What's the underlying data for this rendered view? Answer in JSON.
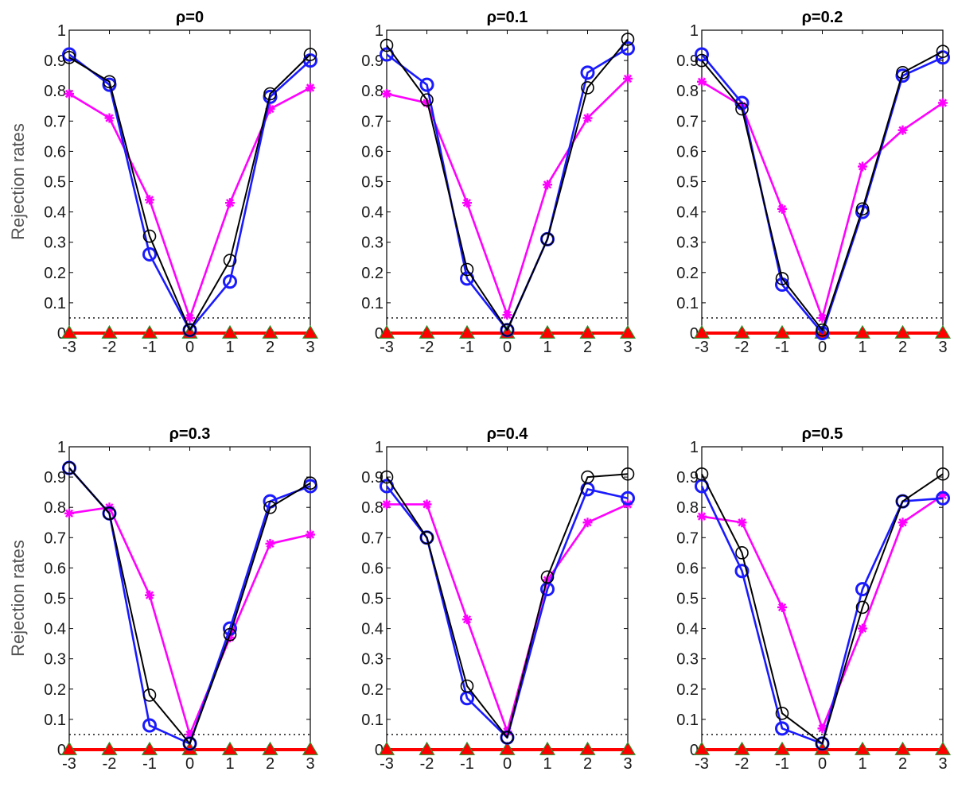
{
  "colors": {
    "blue": "#1a1aff",
    "black": "#000000",
    "magenta": "#ff00ff",
    "red": "#ff0000",
    "green": "#2a8f2a",
    "reference_line": "#000000"
  },
  "chart_data": [
    {
      "type": "line",
      "title": "ρ=0",
      "ylabel": "Rejection rates",
      "x": [
        -3,
        -2,
        -1,
        0,
        1,
        2,
        3
      ],
      "xlim": [
        -3,
        3
      ],
      "ylim": [
        0,
        1
      ],
      "xticks": [
        "-3",
        "-2",
        "-1",
        "0",
        "1",
        "2",
        "3"
      ],
      "yticks": [
        "0",
        "0.1",
        "0.2",
        "0.3",
        "0.4",
        "0.5",
        "0.6",
        "0.7",
        "0.8",
        "0.9",
        "1"
      ],
      "reference_line": 0.05,
      "series": [
        {
          "marker": "triangle",
          "color": "red",
          "values": [
            0,
            0,
            0,
            0,
            0,
            0,
            0
          ]
        },
        {
          "marker": "star",
          "color": "magenta",
          "values": [
            0.79,
            0.71,
            0.44,
            0.05,
            0.43,
            0.74,
            0.81
          ]
        },
        {
          "marker": "circle-bold",
          "color": "blue",
          "values": [
            0.92,
            0.82,
            0.26,
            0.01,
            0.17,
            0.78,
            0.9
          ]
        },
        {
          "marker": "circle",
          "color": "black",
          "values": [
            0.91,
            0.83,
            0.32,
            0.01,
            0.24,
            0.79,
            0.92
          ]
        }
      ]
    },
    {
      "type": "line",
      "title": "ρ=0.1",
      "ylabel": "",
      "x": [
        -3,
        -2,
        -1,
        0,
        1,
        2,
        3
      ],
      "xlim": [
        -3,
        3
      ],
      "ylim": [
        0,
        1
      ],
      "xticks": [
        "-3",
        "-2",
        "-1",
        "0",
        "1",
        "2",
        "3"
      ],
      "yticks": [
        "0",
        "0.1",
        "0.2",
        "0.3",
        "0.4",
        "0.5",
        "0.6",
        "0.7",
        "0.8",
        "0.9",
        "1"
      ],
      "reference_line": 0.05,
      "series": [
        {
          "marker": "triangle",
          "color": "red",
          "values": [
            0,
            0,
            0,
            0,
            0,
            0,
            0
          ]
        },
        {
          "marker": "star",
          "color": "magenta",
          "values": [
            0.79,
            0.76,
            0.43,
            0.06,
            0.49,
            0.71,
            0.84
          ]
        },
        {
          "marker": "circle-bold",
          "color": "blue",
          "values": [
            0.92,
            0.82,
            0.18,
            0.01,
            0.31,
            0.86,
            0.94
          ]
        },
        {
          "marker": "circle",
          "color": "black",
          "values": [
            0.95,
            0.77,
            0.21,
            0.01,
            0.31,
            0.81,
            0.97
          ]
        }
      ]
    },
    {
      "type": "line",
      "title": "ρ=0.2",
      "ylabel": "",
      "x": [
        -3,
        -2,
        -1,
        0,
        1,
        2,
        3
      ],
      "xlim": [
        -3,
        3
      ],
      "ylim": [
        0,
        1
      ],
      "xticks": [
        "-3",
        "-2",
        "-1",
        "0",
        "1",
        "2",
        "3"
      ],
      "yticks": [
        "0",
        "0.1",
        "0.2",
        "0.3",
        "0.4",
        "0.5",
        "0.6",
        "0.7",
        "0.8",
        "0.9",
        "1"
      ],
      "reference_line": 0.05,
      "series": [
        {
          "marker": "triangle",
          "color": "red",
          "values": [
            0,
            0,
            0,
            0,
            0,
            0,
            0
          ]
        },
        {
          "marker": "star",
          "color": "magenta",
          "values": [
            0.83,
            0.75,
            0.41,
            0.05,
            0.55,
            0.67,
            0.76
          ]
        },
        {
          "marker": "circle-bold",
          "color": "blue",
          "values": [
            0.92,
            0.76,
            0.16,
            0.0,
            0.4,
            0.85,
            0.91
          ]
        },
        {
          "marker": "circle",
          "color": "black",
          "values": [
            0.9,
            0.74,
            0.18,
            0.01,
            0.41,
            0.86,
            0.93
          ]
        }
      ]
    },
    {
      "type": "line",
      "title": "ρ=0.3",
      "ylabel": "Rejection rates",
      "x": [
        -3,
        -2,
        -1,
        0,
        1,
        2,
        3
      ],
      "xlim": [
        -3,
        3
      ],
      "ylim": [
        0,
        1
      ],
      "xticks": [
        "-3",
        "-2",
        "-1",
        "0",
        "1",
        "2",
        "3"
      ],
      "yticks": [
        "0",
        "0.1",
        "0.2",
        "0.3",
        "0.4",
        "0.5",
        "0.6",
        "0.7",
        "0.8",
        "0.9",
        "1"
      ],
      "reference_line": 0.05,
      "series": [
        {
          "marker": "triangle",
          "color": "red",
          "values": [
            0,
            0,
            0,
            0,
            0,
            0,
            0
          ]
        },
        {
          "marker": "star",
          "color": "magenta",
          "values": [
            0.78,
            0.8,
            0.51,
            0.05,
            0.37,
            0.68,
            0.71
          ]
        },
        {
          "marker": "circle-bold",
          "color": "blue",
          "values": [
            0.93,
            0.78,
            0.08,
            0.02,
            0.4,
            0.82,
            0.87
          ]
        },
        {
          "marker": "circle",
          "color": "black",
          "values": [
            0.93,
            0.78,
            0.18,
            0.02,
            0.38,
            0.8,
            0.88
          ]
        }
      ]
    },
    {
      "type": "line",
      "title": "ρ=0.4",
      "ylabel": "",
      "x": [
        -3,
        -2,
        -1,
        0,
        1,
        2,
        3
      ],
      "xlim": [
        -3,
        3
      ],
      "ylim": [
        0,
        1
      ],
      "xticks": [
        "-3",
        "-2",
        "-1",
        "0",
        "1",
        "2",
        "3"
      ],
      "yticks": [
        "0",
        "0.1",
        "0.2",
        "0.3",
        "0.4",
        "0.5",
        "0.6",
        "0.7",
        "0.8",
        "0.9",
        "1"
      ],
      "reference_line": 0.05,
      "series": [
        {
          "marker": "triangle",
          "color": "red",
          "values": [
            0,
            0,
            0,
            0,
            0,
            0,
            0
          ]
        },
        {
          "marker": "star",
          "color": "magenta",
          "values": [
            0.81,
            0.81,
            0.43,
            0.06,
            0.56,
            0.75,
            0.81
          ]
        },
        {
          "marker": "circle-bold",
          "color": "blue",
          "values": [
            0.87,
            0.7,
            0.17,
            0.04,
            0.53,
            0.86,
            0.83
          ]
        },
        {
          "marker": "circle",
          "color": "black",
          "values": [
            0.9,
            0.7,
            0.21,
            0.04,
            0.57,
            0.9,
            0.91
          ]
        }
      ]
    },
    {
      "type": "line",
      "title": "ρ=0.5",
      "ylabel": "",
      "x": [
        -3,
        -2,
        -1,
        0,
        1,
        2,
        3
      ],
      "xlim": [
        -3,
        3
      ],
      "ylim": [
        0,
        1
      ],
      "xticks": [
        "-3",
        "-2",
        "-1",
        "0",
        "1",
        "2",
        "3"
      ],
      "yticks": [
        "0",
        "0.1",
        "0.2",
        "0.3",
        "0.4",
        "0.5",
        "0.6",
        "0.7",
        "0.8",
        "0.9",
        "1"
      ],
      "reference_line": 0.05,
      "series": [
        {
          "marker": "triangle",
          "color": "red",
          "values": [
            0,
            0,
            0,
            0,
            0,
            0,
            0
          ]
        },
        {
          "marker": "star",
          "color": "magenta",
          "values": [
            0.77,
            0.75,
            0.47,
            0.07,
            0.4,
            0.75,
            0.84
          ]
        },
        {
          "marker": "circle-bold",
          "color": "blue",
          "values": [
            0.87,
            0.59,
            0.07,
            0.02,
            0.53,
            0.82,
            0.83
          ]
        },
        {
          "marker": "circle",
          "color": "black",
          "values": [
            0.91,
            0.65,
            0.12,
            0.02,
            0.47,
            0.82,
            0.91
          ]
        }
      ]
    }
  ]
}
